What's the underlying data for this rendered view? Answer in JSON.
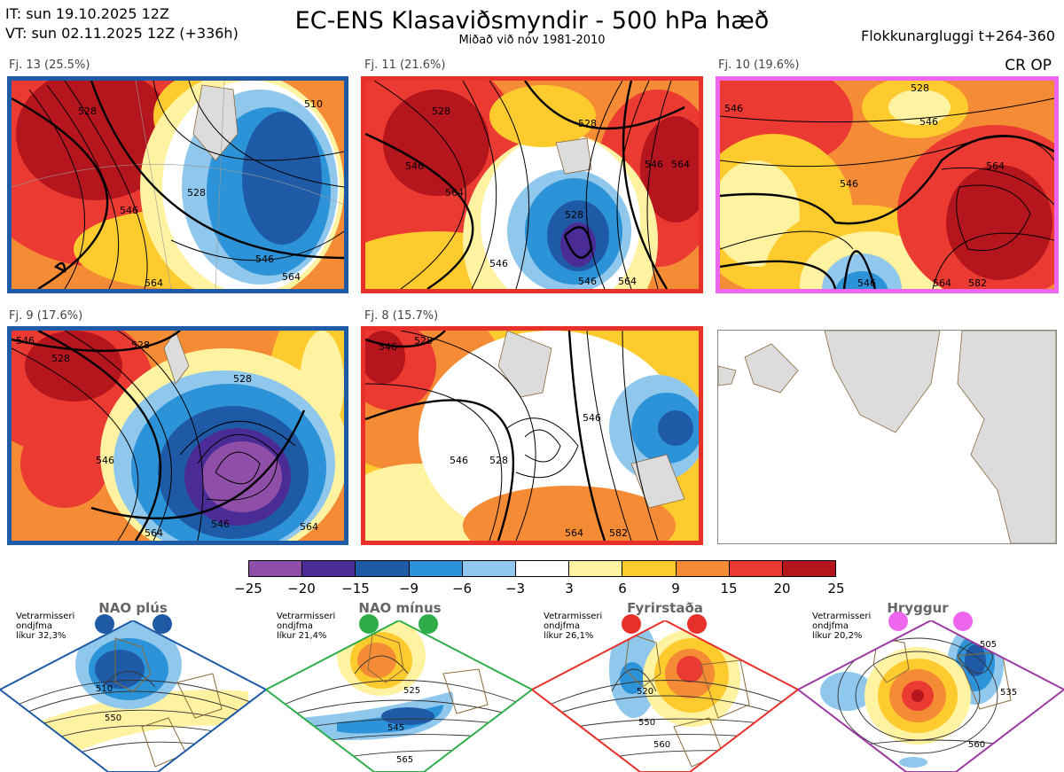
{
  "header": {
    "it_line": "IT: sun 19.10.2025 12Z",
    "vt_line": "VT: sun 02.11.2025 12Z  (+336h)",
    "title": "EC-ENS Klasaviðsmyndir - 500 hPa hæð",
    "subtitle": "Miðað við nóv 1981-2010",
    "window": "Flokkunargluggi t+264-360",
    "cr_op": "CR OP"
  },
  "clusters": [
    {
      "label": "Fj. 13 (25.5%)",
      "frame_color": "#1f5aa6",
      "contours": [
        "528",
        "546",
        "528",
        "546",
        "564",
        "564",
        "510"
      ]
    },
    {
      "label": "Fj. 11 (21.6%)",
      "frame_color": "#e8302a",
      "contours": [
        "528",
        "528",
        "546",
        "564",
        "546",
        "564",
        "528",
        "546",
        "546",
        "564"
      ]
    },
    {
      "label": "Fj. 10 (19.6%)",
      "frame_color": "#ee66ee",
      "contours": [
        "528",
        "546",
        "546",
        "564",
        "546",
        "546",
        "564",
        "582"
      ]
    },
    {
      "label": "Fj. 9 (17.6%)",
      "frame_color": "#1f5aa6",
      "contours": [
        "546",
        "528",
        "528",
        "528",
        "546",
        "546",
        "564",
        "564"
      ]
    },
    {
      "label": "Fj. 8 (15.7%)",
      "frame_color": "#e8302a",
      "contours": [
        "546",
        "528",
        "546",
        "528",
        "546",
        "564",
        "582"
      ]
    }
  ],
  "colorbar": {
    "colors": [
      "#8f4fa8",
      "#4b2c97",
      "#1f5aa6",
      "#2d93d8",
      "#8fc8ec",
      "#ffffff",
      "#fff2a0",
      "#fecb2e",
      "#f58b34",
      "#ea3a32",
      "#b5151c"
    ],
    "ticks": [
      "−25",
      "−20",
      "−15",
      "−9",
      "−6",
      "−3",
      "3",
      "6",
      "9",
      "15",
      "20",
      "25"
    ]
  },
  "regimes": [
    {
      "name": "NAO plús",
      "note_line1": "Vetrarmisseri",
      "note_line2": "ondjfma",
      "note_line3": "líkur 32,3%",
      "color": "#1f5aa6",
      "contours": [
        "510",
        "550"
      ]
    },
    {
      "name": "NAO mínus",
      "note_line1": "Vetrarmisseri",
      "note_line2": "ondjfma",
      "note_line3": "líkur 21,4%",
      "color": "#2eae4a",
      "contours": [
        "525",
        "545",
        "565"
      ]
    },
    {
      "name": "Fyrirstaða",
      "note_line1": "Vetrarmisseri",
      "note_line2": "ondjfma",
      "note_line3": "líkur 26,1%",
      "color": "#e8302a",
      "contours": [
        "520",
        "550",
        "560"
      ]
    },
    {
      "name": "Hryggur",
      "note_line1": "Vetrarmisseri",
      "note_line2": "ondjfma",
      "note_line3": "líkur 20,2%",
      "color": "#9b3aa0",
      "dot_color": "#ee66ee",
      "contours": [
        "505",
        "535",
        "560"
      ]
    }
  ],
  "icons": {
    "land": "gray-land-shape",
    "graticule": "lat-lon-lines",
    "regime_marker": "filled-circle"
  }
}
